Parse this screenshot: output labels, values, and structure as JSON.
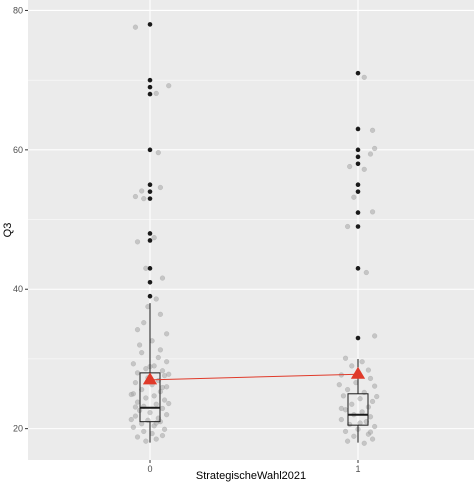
{
  "chart_data": {
    "type": "scatter",
    "xlabel": "StrategischeWahl2021",
    "ylabel": "Q3",
    "categories": [
      "0",
      "1"
    ],
    "ylim": [
      15.5,
      81.5
    ],
    "y_ticks": [
      20,
      40,
      60,
      80
    ],
    "grid": true,
    "colors": {
      "panel": "#ebebeb",
      "grid": "#ffffff",
      "jitter": "#a6a6a6",
      "outlier": "#1a1a1a",
      "mean": "#e03a2a",
      "box": "#1a1a1a"
    },
    "boxplots": [
      {
        "category": "0",
        "lower_whisker": 18,
        "q1": 21,
        "median": 23,
        "q3": 28,
        "upper_whisker": 38
      },
      {
        "category": "1",
        "lower_whisker": 18,
        "q1": 20.5,
        "median": 22,
        "q3": 25,
        "upper_whisker": 30
      }
    ],
    "means": [
      {
        "category": "0",
        "value": 27
      },
      {
        "category": "1",
        "value": 27.8
      }
    ],
    "outliers": [
      {
        "category": "0",
        "values": [
          78,
          70,
          69,
          68,
          60,
          55,
          54,
          53,
          48,
          47,
          43,
          41,
          39
        ]
      },
      {
        "category": "1",
        "values": [
          71,
          63,
          60,
          59,
          58,
          55,
          54,
          51,
          49,
          43,
          33
        ]
      }
    ],
    "jitter_points": [
      {
        "category": "0",
        "points": [
          [
            -0.07,
            77.6
          ],
          [
            0.09,
            69.2
          ],
          [
            0.03,
            68.1
          ],
          [
            0.04,
            59.6
          ],
          [
            -0.07,
            53.3
          ],
          [
            -0.04,
            54.1
          ],
          [
            -0.03,
            53.0
          ],
          [
            0.05,
            54.6
          ],
          [
            -0.06,
            46.8
          ],
          [
            0.02,
            47.4
          ],
          [
            -0.02,
            43.0
          ],
          [
            0.06,
            41.6
          ],
          [
            0.03,
            38.6
          ],
          [
            -0.01,
            37.5
          ],
          [
            0.05,
            36.4
          ],
          [
            -0.03,
            35.2
          ],
          [
            0.08,
            33.6
          ],
          [
            -0.06,
            34.2
          ],
          [
            0.01,
            32.6
          ],
          [
            0.05,
            31.3
          ],
          [
            -0.04,
            30.9
          ],
          [
            0.08,
            29.6
          ],
          [
            -0.08,
            29.3
          ],
          [
            0.02,
            29.0
          ],
          [
            -0.02,
            28.6
          ],
          [
            0.06,
            28.3
          ],
          [
            -0.06,
            28.0
          ],
          [
            0.07,
            27.6
          ],
          [
            -0.01,
            27.3
          ],
          [
            0.04,
            26.9
          ],
          [
            -0.07,
            26.6
          ],
          [
            0.01,
            26.3
          ],
          [
            0.08,
            26.0
          ],
          [
            -0.04,
            25.6
          ],
          [
            0.05,
            25.3
          ],
          [
            -0.08,
            25.0
          ],
          [
            0.02,
            24.7
          ],
          [
            -0.02,
            24.4
          ],
          [
            0.07,
            24.1
          ],
          [
            -0.06,
            23.8
          ],
          [
            0.03,
            23.5
          ],
          [
            -0.03,
            23.2
          ],
          [
            0.06,
            22.9
          ],
          [
            -0.05,
            22.6
          ],
          [
            0.0,
            22.3
          ],
          [
            0.08,
            22.0
          ],
          [
            -0.07,
            21.8
          ],
          [
            0.04,
            21.5
          ],
          [
            -0.01,
            21.2
          ],
          [
            0.05,
            21.0
          ],
          [
            -0.04,
            20.7
          ],
          [
            0.02,
            20.4
          ],
          [
            -0.08,
            20.2
          ],
          [
            0.07,
            19.9
          ],
          [
            -0.03,
            19.6
          ],
          [
            0.01,
            19.3
          ],
          [
            0.06,
            19.0
          ],
          [
            -0.06,
            18.8
          ],
          [
            0.03,
            18.5
          ],
          [
            -0.02,
            18.2
          ],
          [
            0.09,
            23.6
          ],
          [
            -0.09,
            24.9
          ],
          [
            0.09,
            27.8
          ],
          [
            -0.09,
            21.3
          ],
          [
            0.04,
            30.2
          ],
          [
            -0.05,
            32.0
          ],
          [
            0.0,
            28.9
          ],
          [
            0.03,
            20.8
          ],
          [
            -0.07,
            23.1
          ],
          [
            0.06,
            25.9
          ]
        ]
      },
      {
        "category": "1",
        "points": [
          [
            0.03,
            70.4
          ],
          [
            0.07,
            62.8
          ],
          [
            0.08,
            60.2
          ],
          [
            0.06,
            59.4
          ],
          [
            -0.04,
            57.6
          ],
          [
            0.03,
            57.2
          ],
          [
            -0.02,
            53.2
          ],
          [
            0.07,
            51.1
          ],
          [
            -0.05,
            49.0
          ],
          [
            0.04,
            42.4
          ],
          [
            0.08,
            33.3
          ],
          [
            -0.06,
            30.1
          ],
          [
            0.02,
            29.6
          ],
          [
            -0.03,
            29.0
          ],
          [
            0.05,
            28.4
          ],
          [
            -0.08,
            27.7
          ],
          [
            0.06,
            27.2
          ],
          [
            -0.01,
            26.6
          ],
          [
            0.08,
            26.1
          ],
          [
            -0.05,
            25.6
          ],
          [
            0.03,
            25.2
          ],
          [
            -0.07,
            24.7
          ],
          [
            0.01,
            24.3
          ],
          [
            0.07,
            23.9
          ],
          [
            -0.03,
            23.5
          ],
          [
            0.05,
            23.1
          ],
          [
            -0.06,
            22.7
          ],
          [
            0.02,
            22.4
          ],
          [
            -0.02,
            22.0
          ],
          [
            0.06,
            21.7
          ],
          [
            -0.08,
            21.3
          ],
          [
            0.04,
            21.0
          ],
          [
            -0.04,
            20.6
          ],
          [
            0.08,
            20.3
          ],
          [
            0.0,
            19.9
          ],
          [
            -0.06,
            19.6
          ],
          [
            0.05,
            19.2
          ],
          [
            -0.02,
            18.9
          ],
          [
            0.07,
            18.5
          ],
          [
            -0.05,
            18.2
          ],
          [
            0.03,
            17.9
          ],
          [
            -0.08,
            22.9
          ],
          [
            0.09,
            24.6
          ],
          [
            -0.09,
            26.3
          ],
          [
            0.01,
            20.8
          ],
          [
            0.06,
            19.5
          ]
        ]
      }
    ]
  }
}
